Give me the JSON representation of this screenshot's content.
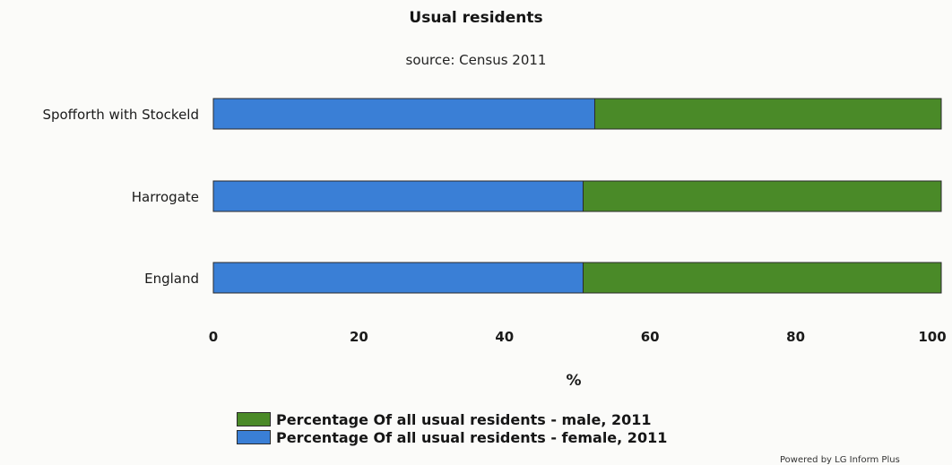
{
  "chart_data": {
    "type": "bar",
    "orientation": "horizontal",
    "stacked": true,
    "title": "Usual residents",
    "subtitle": "source: Census 2011",
    "xlabel": "%",
    "ylabel": "",
    "xlim": [
      0,
      100
    ],
    "x_ticks": [
      "0",
      "20",
      "40",
      "60",
      "80",
      "100"
    ],
    "categories": [
      "Spofforth with Stockeld",
      "Harrogate",
      "England"
    ],
    "series": [
      {
        "name": "Percentage Of all usual residents - female, 2011",
        "color": "#3a7fd6",
        "values": [
          52.4,
          50.8,
          50.8
        ]
      },
      {
        "name": "Percentage Of all usual residents - male, 2011",
        "color": "#4a8a28",
        "values": [
          47.6,
          49.2,
          49.2
        ]
      }
    ],
    "legend": {
      "position": "bottom",
      "entries": [
        {
          "label": "Percentage Of all usual residents - male, 2011",
          "color": "#4a8a28"
        },
        {
          "label": "Percentage Of all usual residents - female, 2011",
          "color": "#3a7fd6"
        }
      ]
    },
    "grid": false
  },
  "footer": {
    "powered_by": "Powered by LG Inform Plus"
  }
}
